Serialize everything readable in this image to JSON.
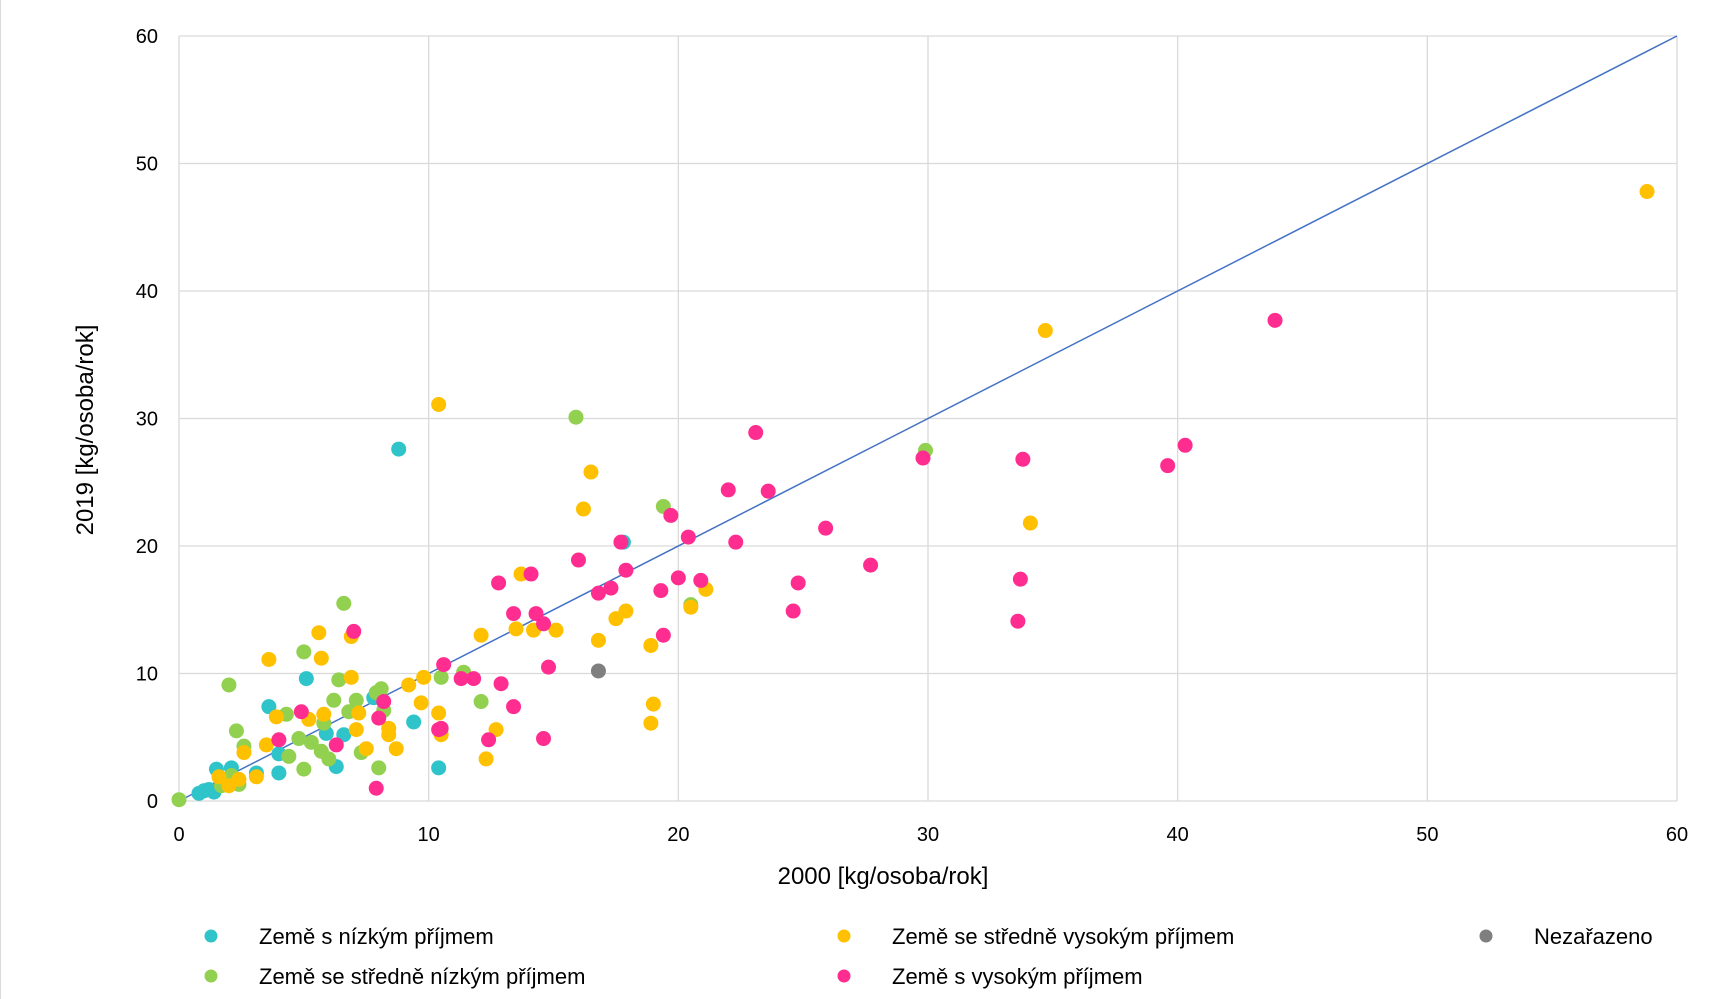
{
  "chart_data": {
    "type": "scatter",
    "xlabel": "2000 [kg/osoba/rok]",
    "ylabel": "2019 [kg/osoba/rok]",
    "xlim": [
      0,
      60
    ],
    "ylim": [
      0,
      60
    ],
    "x_ticks": [
      "0",
      "10",
      "20",
      "30",
      "40",
      "50",
      "60"
    ],
    "y_ticks": [
      "0",
      "10",
      "20",
      "30",
      "40",
      "50",
      "60"
    ],
    "grid": true,
    "reference_line": {
      "from": [
        0,
        0
      ],
      "to": [
        60,
        60
      ],
      "color": "#4472c4"
    },
    "legend_position": "bottom",
    "series": [
      {
        "name": "Země s nízkým příjmem",
        "color": "#2ec4c9",
        "points": [
          [
            8.8,
            27.6
          ],
          [
            17.8,
            20.3
          ],
          [
            1.5,
            2.5
          ],
          [
            2.1,
            2.6
          ],
          [
            3.6,
            7.4
          ],
          [
            5.1,
            9.6
          ],
          [
            9.4,
            6.2
          ],
          [
            10.4,
            2.6
          ],
          [
            6.3,
            2.7
          ],
          [
            4.0,
            3.7
          ],
          [
            4.0,
            2.2
          ],
          [
            3.1,
            2.2
          ],
          [
            1.2,
            0.9
          ],
          [
            0.8,
            0.6
          ],
          [
            1.4,
            0.7
          ],
          [
            5.9,
            5.3
          ],
          [
            6.6,
            5.2
          ],
          [
            1.0,
            0.8
          ],
          [
            1.8,
            1.3
          ],
          [
            7.8,
            8.1
          ]
        ]
      },
      {
        "name": "Země se středně nízkým příjmem",
        "color": "#92d050",
        "points": [
          [
            15.9,
            30.1
          ],
          [
            29.9,
            27.5
          ],
          [
            19.4,
            23.1
          ],
          [
            20.5,
            15.4
          ],
          [
            6.6,
            15.5
          ],
          [
            2.0,
            9.1
          ],
          [
            5.0,
            11.7
          ],
          [
            2.3,
            5.5
          ],
          [
            2.6,
            4.3
          ],
          [
            4.3,
            6.8
          ],
          [
            4.8,
            4.9
          ],
          [
            6.2,
            7.9
          ],
          [
            6.4,
            9.5
          ],
          [
            7.1,
            7.9
          ],
          [
            8.1,
            8.8
          ],
          [
            7.9,
            8.5
          ],
          [
            10.5,
            9.7
          ],
          [
            11.4,
            10.1
          ],
          [
            12.1,
            7.8
          ],
          [
            8.2,
            7.1
          ],
          [
            6.8,
            7.0
          ],
          [
            5.8,
            6.1
          ],
          [
            5.3,
            4.6
          ],
          [
            5.7,
            3.9
          ],
          [
            6.0,
            3.3
          ],
          [
            7.3,
            3.8
          ],
          [
            8.0,
            2.6
          ],
          [
            5.0,
            2.5
          ],
          [
            4.4,
            3.5
          ],
          [
            2.4,
            1.3
          ],
          [
            1.7,
            1.2
          ],
          [
            2.1,
            2.0
          ],
          [
            0.0,
            0.1
          ]
        ]
      },
      {
        "name": "Země se středně vysokým příjmem",
        "color": "#ffc000",
        "points": [
          [
            58.8,
            47.8
          ],
          [
            34.7,
            36.9
          ],
          [
            10.4,
            31.1
          ],
          [
            34.1,
            21.8
          ],
          [
            16.5,
            25.8
          ],
          [
            16.2,
            22.9
          ],
          [
            21.1,
            16.6
          ],
          [
            20.5,
            15.2
          ],
          [
            13.7,
            17.8
          ],
          [
            17.9,
            14.9
          ],
          [
            17.5,
            14.3
          ],
          [
            15.1,
            13.4
          ],
          [
            14.2,
            13.4
          ],
          [
            13.5,
            13.5
          ],
          [
            12.1,
            13.0
          ],
          [
            16.8,
            12.6
          ],
          [
            18.9,
            12.2
          ],
          [
            19.0,
            7.6
          ],
          [
            18.9,
            6.1
          ],
          [
            12.7,
            5.6
          ],
          [
            12.3,
            3.3
          ],
          [
            10.5,
            5.2
          ],
          [
            10.4,
            6.9
          ],
          [
            9.2,
            9.1
          ],
          [
            9.8,
            9.7
          ],
          [
            9.7,
            7.7
          ],
          [
            8.7,
            4.1
          ],
          [
            8.4,
            5.7
          ],
          [
            8.4,
            5.2
          ],
          [
            7.5,
            4.1
          ],
          [
            7.1,
            5.6
          ],
          [
            7.2,
            6.9
          ],
          [
            6.9,
            9.7
          ],
          [
            6.9,
            12.9
          ],
          [
            5.7,
            11.2
          ],
          [
            5.6,
            13.2
          ],
          [
            5.8,
            6.8
          ],
          [
            5.2,
            6.4
          ],
          [
            3.6,
            11.1
          ],
          [
            3.9,
            6.6
          ],
          [
            3.5,
            4.4
          ],
          [
            2.6,
            3.8
          ],
          [
            3.1,
            1.9
          ],
          [
            2.0,
            1.2
          ],
          [
            1.6,
            1.9
          ],
          [
            2.4,
            1.7
          ]
        ]
      },
      {
        "name": "Země s vysokým příjmem",
        "color": "#ff2d8f",
        "points": [
          [
            43.9,
            37.7
          ],
          [
            40.3,
            27.9
          ],
          [
            39.6,
            26.3
          ],
          [
            33.8,
            26.8
          ],
          [
            29.8,
            26.9
          ],
          [
            33.7,
            17.4
          ],
          [
            33.6,
            14.1
          ],
          [
            23.1,
            28.9
          ],
          [
            23.6,
            24.3
          ],
          [
            22.0,
            24.4
          ],
          [
            25.9,
            21.4
          ],
          [
            27.7,
            18.5
          ],
          [
            22.3,
            20.3
          ],
          [
            24.8,
            17.1
          ],
          [
            24.6,
            14.9
          ],
          [
            20.4,
            20.7
          ],
          [
            19.7,
            22.4
          ],
          [
            20.0,
            17.5
          ],
          [
            20.9,
            17.3
          ],
          [
            19.3,
            16.5
          ],
          [
            19.4,
            13.0
          ],
          [
            17.9,
            18.1
          ],
          [
            17.7,
            20.3
          ],
          [
            17.3,
            16.7
          ],
          [
            16.8,
            16.3
          ],
          [
            16.0,
            18.9
          ],
          [
            14.1,
            17.8
          ],
          [
            12.8,
            17.1
          ],
          [
            13.4,
            14.7
          ],
          [
            14.3,
            14.7
          ],
          [
            14.6,
            13.9
          ],
          [
            14.8,
            10.5
          ],
          [
            14.6,
            4.9
          ],
          [
            13.4,
            7.4
          ],
          [
            12.9,
            9.2
          ],
          [
            12.4,
            4.8
          ],
          [
            11.8,
            9.6
          ],
          [
            11.3,
            9.6
          ],
          [
            10.6,
            10.7
          ],
          [
            10.5,
            5.7
          ],
          [
            10.4,
            5.6
          ],
          [
            8.2,
            7.8
          ],
          [
            8.0,
            6.5
          ],
          [
            7.9,
            1.0
          ],
          [
            7.0,
            13.3
          ],
          [
            6.3,
            4.4
          ],
          [
            4.9,
            7.0
          ],
          [
            4.0,
            4.8
          ]
        ]
      },
      {
        "name": "Nezařazeno",
        "color": "#7f7f7f",
        "points": [
          [
            16.8,
            10.2
          ]
        ]
      }
    ]
  }
}
